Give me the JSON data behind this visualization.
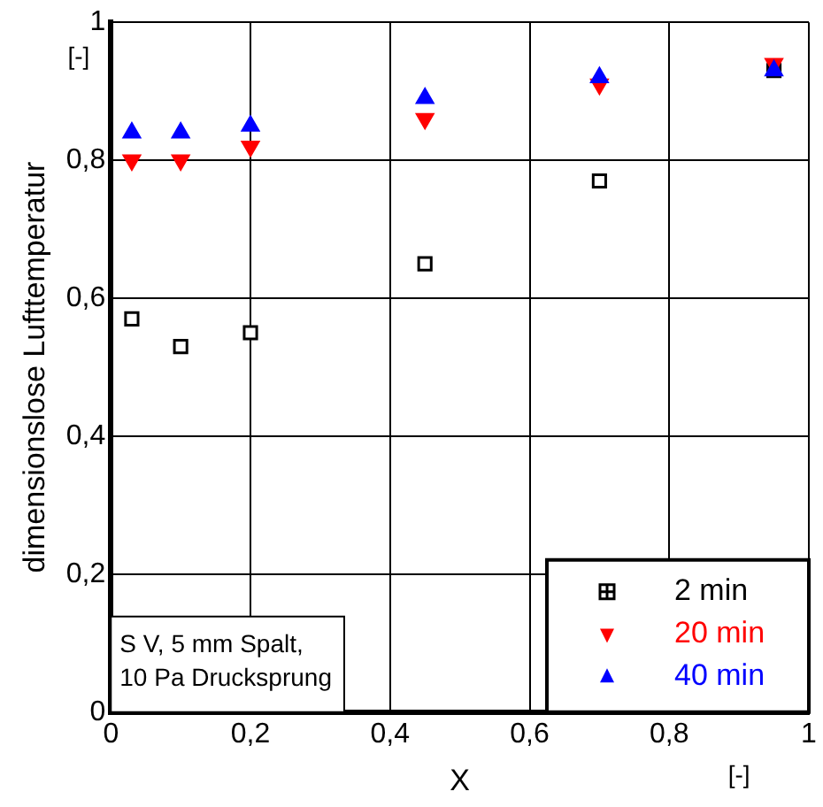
{
  "chart_data": {
    "type": "scatter",
    "xlabel": "X",
    "ylabel": "dimensionslose Lufttemperatur",
    "annotations": [
      "[-]",
      "[-]",
      "S V, 5 mm Spalt,\n10 Pa Drucksprung"
    ],
    "x": [
      0.03,
      0.1,
      0.2,
      0.45,
      0.7,
      0.95
    ],
    "series": [
      {
        "name": "2 min",
        "color": "#000000",
        "marker": "square",
        "values": [
          0.57,
          0.53,
          0.55,
          0.65,
          0.77,
          0.93
        ]
      },
      {
        "name": "20 min",
        "color": "#ff0000",
        "marker": "triangle-down",
        "values": [
          0.8,
          0.8,
          0.82,
          0.86,
          0.91,
          0.94
        ]
      },
      {
        "name": "40 min",
        "color": "#0000ff",
        "marker": "triangle",
        "values": [
          0.84,
          0.84,
          0.85,
          0.89,
          0.92,
          0.93
        ]
      }
    ],
    "xlim": [
      0,
      1
    ],
    "ylim": [
      0,
      1
    ],
    "xticks": [
      0,
      {
        "value": 0.2,
        "label": "0,2"
      },
      {
        "value": 0.4,
        "label": "0,4"
      },
      {
        "value": 0.6,
        "label": "0,6"
      },
      {
        "value": 0.8,
        "label": "0,8"
      },
      1
    ],
    "yticks": [
      0,
      {
        "value": 0.2,
        "label": "0,2"
      },
      {
        "value": 0.4,
        "label": "0,4"
      },
      {
        "value": 0.6,
        "label": "0,6"
      },
      {
        "value": 0.8,
        "label": "0,8"
      },
      1
    ],
    "grid": true,
    "legend": "bottom right"
  }
}
